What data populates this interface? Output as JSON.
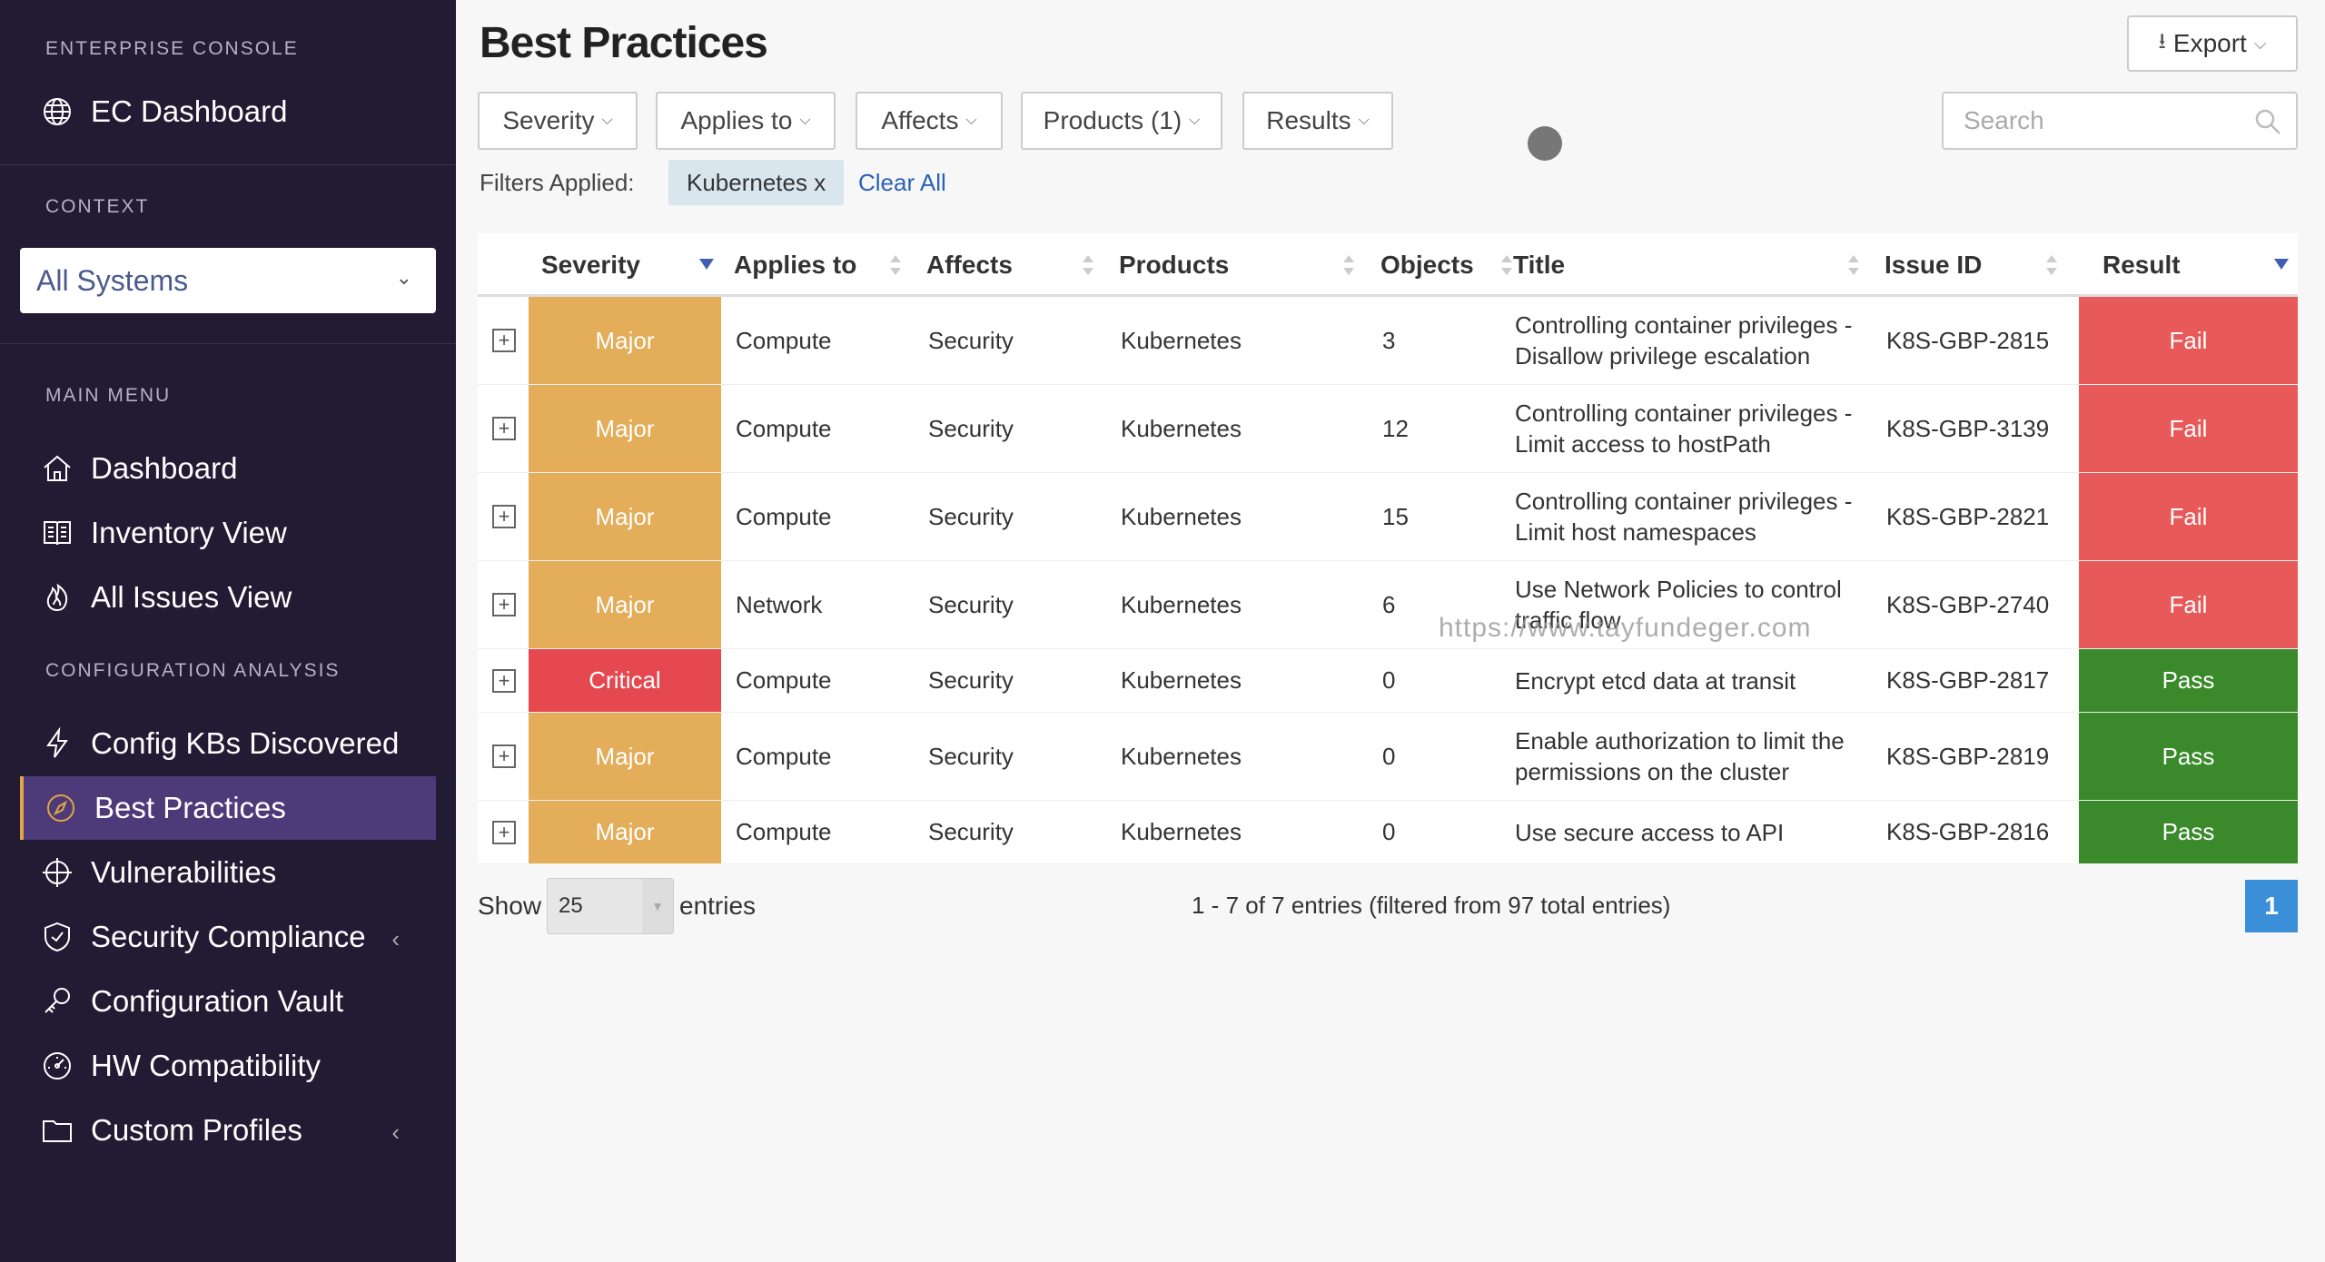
{
  "sidebar": {
    "enterprise_label": "ENTERPRISE CONSOLE",
    "ec_dashboard": "EC Dashboard",
    "context_label": "CONTEXT",
    "context_value": "All Systems",
    "main_menu_label": "MAIN MENU",
    "menu": [
      {
        "label": "Dashboard",
        "icon": "home-icon"
      },
      {
        "label": "Inventory View",
        "icon": "inventory-icon"
      },
      {
        "label": "All Issues View",
        "icon": "flame-icon"
      }
    ],
    "config_label": "CONFIGURATION ANALYSIS",
    "config": [
      {
        "label": "Config KBs Discovered",
        "icon": "bolt-icon"
      },
      {
        "label": "Best Practices",
        "icon": "compass-icon",
        "active": true
      },
      {
        "label": "Vulnerabilities",
        "icon": "crosshair-icon"
      },
      {
        "label": "Security Compliance",
        "icon": "shield-icon",
        "chevron": "‹"
      },
      {
        "label": "Configuration Vault",
        "icon": "key-icon"
      },
      {
        "label": "HW Compatibility",
        "icon": "gauge-icon"
      },
      {
        "label": "Custom Profiles",
        "icon": "folder-icon",
        "chevron": "‹"
      }
    ]
  },
  "header": {
    "title": "Best Practices",
    "export_label": "Export"
  },
  "filters": {
    "buttons": [
      "Severity",
      "Applies to",
      "Affects",
      "Products (1)",
      "Results"
    ],
    "search_placeholder": "Search",
    "applied_label": "Filters Applied:",
    "chips": [
      "Kubernetes x"
    ],
    "clear_all": "Clear All"
  },
  "table": {
    "columns": [
      "Severity",
      "Applies to",
      "Affects",
      "Products",
      "Objects",
      "Title",
      "Issue ID",
      "Result"
    ],
    "rows": [
      {
        "severity": "Major",
        "applies_to": "Compute",
        "affects": "Security",
        "products": "Kubernetes",
        "objects": "3",
        "title": "Controlling container privileges - Disallow privilege escalation",
        "issue_id": "K8S-GBP-2815",
        "result": "Fail"
      },
      {
        "severity": "Major",
        "applies_to": "Compute",
        "affects": "Security",
        "products": "Kubernetes",
        "objects": "12",
        "title": "Controlling container privileges - Limit access to hostPath",
        "issue_id": "K8S-GBP-3139",
        "result": "Fail"
      },
      {
        "severity": "Major",
        "applies_to": "Compute",
        "affects": "Security",
        "products": "Kubernetes",
        "objects": "15",
        "title": "Controlling container privileges - Limit host namespaces",
        "issue_id": "K8S-GBP-2821",
        "result": "Fail"
      },
      {
        "severity": "Major",
        "applies_to": "Network",
        "affects": "Security",
        "products": "Kubernetes",
        "objects": "6",
        "title": "Use Network Policies to control traffic flow",
        "issue_id": "K8S-GBP-2740",
        "result": "Fail"
      },
      {
        "severity": "Critical",
        "applies_to": "Compute",
        "affects": "Security",
        "products": "Kubernetes",
        "objects": "0",
        "title": "Encrypt etcd data at transit",
        "issue_id": "K8S-GBP-2817",
        "result": "Pass"
      },
      {
        "severity": "Major",
        "applies_to": "Compute",
        "affects": "Security",
        "products": "Kubernetes",
        "objects": "0",
        "title": "Enable authorization to limit the permissions on the cluster",
        "issue_id": "K8S-GBP-2819",
        "result": "Pass"
      },
      {
        "severity": "Major",
        "applies_to": "Compute",
        "affects": "Security",
        "products": "Kubernetes",
        "objects": "0",
        "title": "Use secure access to API",
        "issue_id": "K8S-GBP-2816",
        "result": "Pass"
      }
    ]
  },
  "footer": {
    "show_label": "Show",
    "page_size": "25",
    "entries_label": "entries",
    "info": "1 - 7 of 7 entries (filtered from 97 total entries)",
    "current_page": "1"
  },
  "watermark": "https://www.tayfundeger.com",
  "colors": {
    "major": "#e3ad5a",
    "critical": "#e5484f",
    "fail": "#e85a5a",
    "pass": "#3a8a2c",
    "sidebar_bg": "#211b33",
    "active_bg": "#4d3a78",
    "page_button": "#3b8fd8"
  }
}
